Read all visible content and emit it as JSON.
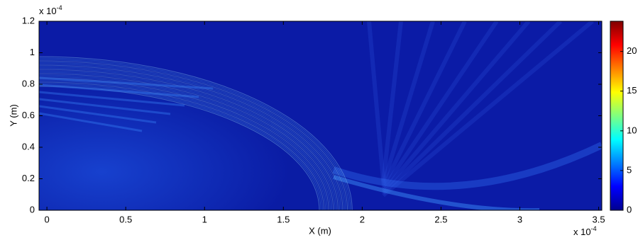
{
  "chart_data": {
    "type": "heatmap",
    "x_label": "X (m)",
    "y_label": "Y (m)",
    "x_multiplier": "x 10",
    "x_exponent": "-4",
    "y_multiplier": "x 10",
    "y_exponent": "-4",
    "xlim": [
      -0.05,
      3.52
    ],
    "xticks": [
      0,
      0.5,
      1,
      1.5,
      2,
      2.5,
      3,
      3.5
    ],
    "ylim": [
      0,
      1.2
    ],
    "yticks": [
      0,
      0.2,
      0.4,
      0.6,
      0.8,
      1,
      1.2
    ],
    "colorbar": {
      "lim": [
        0,
        23.8
      ],
      "ticks": [
        0,
        5,
        10,
        15,
        20
      ]
    }
  }
}
